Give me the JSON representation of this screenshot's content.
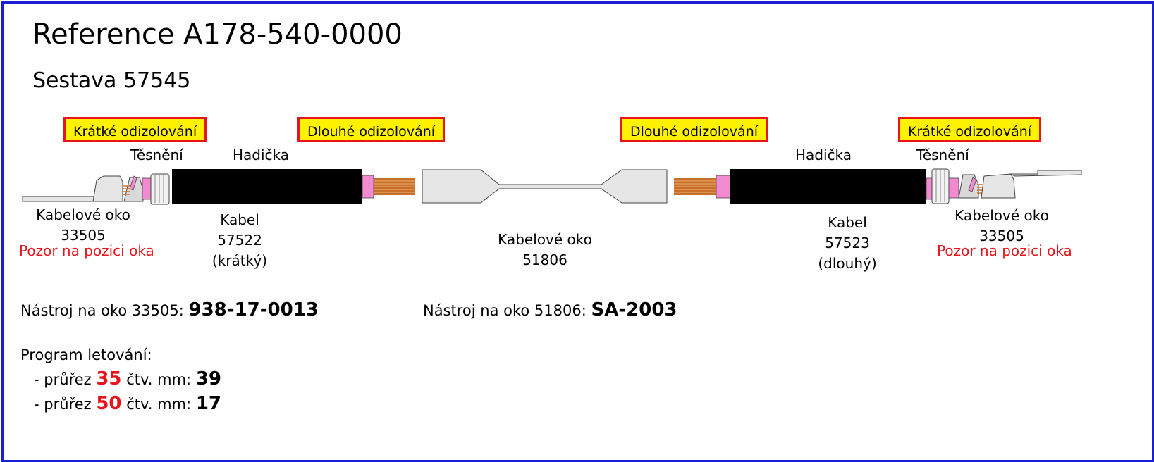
{
  "header": {
    "title": "Reference A178-540-0000",
    "subtitle": "Sestava 57545"
  },
  "tags": {
    "left_short": "Krátké odizolování",
    "left_long": "Dlouhé odizolování",
    "right_long": "Dlouhé odizolování",
    "right_short": "Krátké odizolování"
  },
  "left": {
    "seal": "Těsnění",
    "tube": "Hadička",
    "lug_name": "Kabelové oko",
    "lug_code": "33505",
    "warning": "Pozor na pozici oka",
    "cable_name": "Kabel",
    "cable_code": "57522",
    "cable_note": "(krátký)"
  },
  "center": {
    "lug_name": "Kabelové oko",
    "lug_code": "51806"
  },
  "right": {
    "seal": "Těsnění",
    "tube": "Hadička",
    "lug_name": "Kabelové oko",
    "lug_code": "33505",
    "warning": "Pozor na pozici oka",
    "cable_name": "Kabel",
    "cable_code": "57523",
    "cable_note": "(dlouhý)"
  },
  "tools": {
    "left_label": "Nástroj na oko 33505:",
    "left_value": "938-17-0013",
    "right_label": "Nástroj na oko 51806:",
    "right_value": "SA-2003"
  },
  "program": {
    "title": "Program letování:",
    "rows": [
      {
        "prefix": "- průřez",
        "section": "35",
        "unit": "čtv. mm:",
        "value": "39"
      },
      {
        "prefix": "- průřez",
        "section": "50",
        "unit": "čtv. mm:",
        "value": "17"
      }
    ]
  },
  "colors": {
    "frame": "#1a1fd6",
    "tag_fill": "#fff200",
    "tag_border": "#e8141c",
    "warning": "#e8141c",
    "cable_jacket": "#000000",
    "insulation": "#f28ad2",
    "copper": "#c8702a",
    "lug": "#e6e6e6"
  }
}
